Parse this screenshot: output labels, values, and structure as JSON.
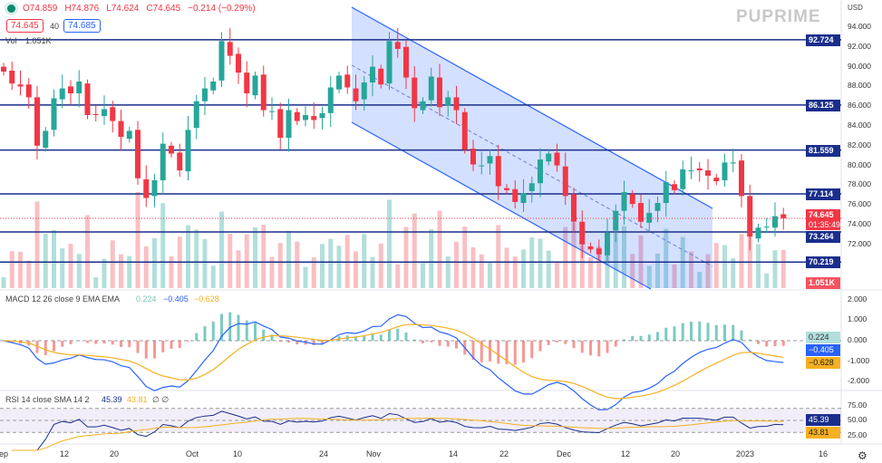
{
  "header": {
    "ohlc": {
      "o": "O74.859",
      "h": "H74.876",
      "l": "L74.624",
      "c": "C74.645",
      "chg": "−0.214 (−0.29%)"
    },
    "bid": "74.645",
    "spread": "40",
    "ask": "74.685",
    "vol_label": "Vol",
    "vol_value": "1.051K"
  },
  "brand": "PUPRIME",
  "currency": "USD",
  "colors": {
    "up": "#26a69a",
    "down": "#f23645",
    "level": "#1a2e8c",
    "channel": "#2962ff",
    "macd": "#2962ff",
    "signal": "#f5b021",
    "rsi": "#1a2e8c"
  },
  "price_axis": {
    "ticks": [
      "94.000",
      "92.000",
      "90.000",
      "88.000",
      "86.000",
      "84.000",
      "82.000",
      "80.000",
      "78.000",
      "76.000",
      "74.000",
      "72.000"
    ],
    "last_price": "74.645",
    "countdown": "01:35:49",
    "volume_tag": "1.051K"
  },
  "levels": [
    "92.724",
    "86.125",
    "81.559",
    "77.114",
    "73.264",
    "70.219"
  ],
  "macd": {
    "label": "MACD 12 26 close 9 EMA EMA",
    "hist": "0.224",
    "macd": "−0.405",
    "signal": "−0.628",
    "ticks": [
      "2.000",
      "1.000",
      "0.000",
      "-1.000",
      "-2.000"
    ]
  },
  "rsi": {
    "label": "RSI 14 close SMA 14 2",
    "rsi": "45.39",
    "sma": "43.81",
    "extra": "∅ ∅",
    "ticks": [
      "75.00",
      "50.00",
      "25.00"
    ]
  },
  "x_axis": [
    "ep",
    "12",
    "20",
    "Oct",
    "10",
    "24",
    "Nov",
    "14",
    "22",
    "Dec",
    "12",
    "20",
    "2023",
    "16"
  ],
  "chart_data": {
    "type": "candlestick",
    "start": "2022-09-01",
    "end": "2023-01-10",
    "ylim": [
      69,
      95
    ],
    "closes": [
      89.5,
      88.3,
      88.0,
      86.9,
      82.0,
      83.5,
      86.8,
      87.8,
      87.3,
      88.5,
      85.1,
      85.1,
      85.7,
      84.5,
      82.9,
      83.5,
      78.7,
      76.7,
      78.5,
      82.2,
      81.2,
      79.5,
      83.6,
      86.5,
      87.8,
      88.5,
      92.6,
      91.1,
      89.4,
      87.3,
      89.1,
      85.6,
      85.5,
      82.8,
      85.6,
      84.5,
      85.1,
      84.6,
      85.3,
      87.9,
      89.1,
      87.9,
      86.5,
      88.4,
      90.0,
      88.2,
      92.6,
      91.8,
      88.9,
      85.8,
      86.5,
      89.0,
      85.9,
      86.9,
      85.6,
      81.6,
      80.1,
      80.0,
      80.95,
      77.9,
      77.5,
      76.3,
      77.2,
      78.2,
      80.6,
      81.2,
      80.0,
      76.9,
      74.3,
      72.0,
      71.5,
      71.0,
      73.2,
      75.4,
      77.3,
      76.1,
      74.3,
      75.2,
      76.2,
      78.3,
      77.5,
      79.6,
      79.5,
      79.5,
      78.96,
      78.4,
      80.3,
      80.3,
      76.9,
      72.8,
      73.7,
      73.8,
      74.859,
      74.645
    ],
    "levels": [
      92.724,
      86.125,
      81.559,
      77.114,
      73.264,
      70.219
    ]
  }
}
